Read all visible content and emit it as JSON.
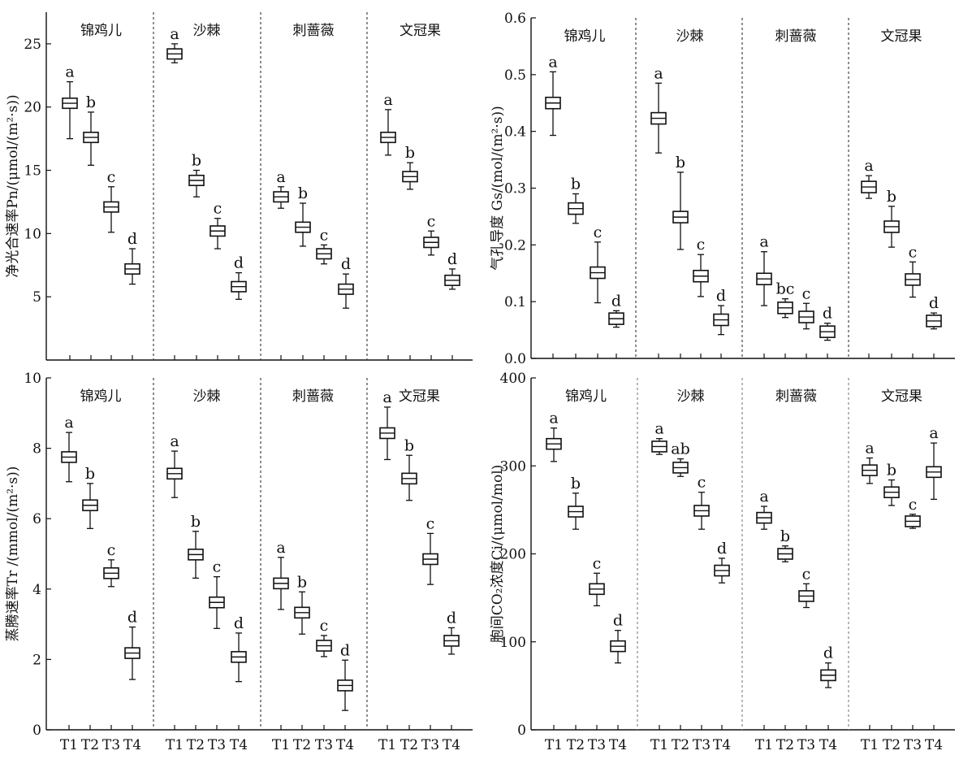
{
  "chart_data": [
    {
      "type": "box",
      "ylabel": "净光合速率Pn/(μmol/(m²·s))",
      "ylim": [
        0,
        27.5
      ],
      "yticks": [
        5,
        10,
        15,
        20,
        25
      ],
      "yticks_text": [
        "5",
        "10",
        "15",
        "20",
        "25"
      ],
      "show_x_tick_labels": false,
      "groups": [
        {
          "name": "锦鸡儿",
          "points": [
            {
              "label": "T1",
              "mean": 20.3,
              "box_low": 19.9,
              "box_high": 20.7,
              "low": 17.5,
              "high": 22.0,
              "sig": "a"
            },
            {
              "label": "T2",
              "mean": 17.6,
              "box_low": 17.2,
              "box_high": 18.0,
              "low": 15.4,
              "high": 19.6,
              "sig": "b"
            },
            {
              "label": "T3",
              "mean": 12.1,
              "box_low": 11.7,
              "box_high": 12.5,
              "low": 10.1,
              "high": 13.7,
              "sig": "c"
            },
            {
              "label": "T4",
              "mean": 7.2,
              "box_low": 6.8,
              "box_high": 7.6,
              "low": 6.0,
              "high": 8.8,
              "sig": "d"
            }
          ]
        },
        {
          "name": "沙棘",
          "points": [
            {
              "label": "T1",
              "mean": 24.2,
              "box_low": 23.8,
              "box_high": 24.6,
              "low": 23.5,
              "high": 25.0,
              "sig": "a"
            },
            {
              "label": "T2",
              "mean": 14.2,
              "box_low": 13.8,
              "box_high": 14.6,
              "low": 12.9,
              "high": 15.0,
              "sig": "b"
            },
            {
              "label": "T3",
              "mean": 10.2,
              "box_low": 9.8,
              "box_high": 10.6,
              "low": 8.8,
              "high": 11.2,
              "sig": "c"
            },
            {
              "label": "T4",
              "mean": 5.8,
              "box_low": 5.4,
              "box_high": 6.2,
              "low": 4.8,
              "high": 6.9,
              "sig": "d"
            }
          ]
        },
        {
          "name": "刺蔷薇",
          "points": [
            {
              "label": "T1",
              "mean": 12.9,
              "box_low": 12.5,
              "box_high": 13.3,
              "low": 12.0,
              "high": 13.7,
              "sig": "a"
            },
            {
              "label": "T2",
              "mean": 10.5,
              "box_low": 10.1,
              "box_high": 10.9,
              "low": 9.0,
              "high": 12.4,
              "sig": "b"
            },
            {
              "label": "T3",
              "mean": 8.4,
              "box_low": 8.0,
              "box_high": 8.8,
              "low": 7.6,
              "high": 9.1,
              "sig": "c"
            },
            {
              "label": "T4",
              "mean": 5.6,
              "box_low": 5.2,
              "box_high": 6.0,
              "low": 4.1,
              "high": 6.8,
              "sig": "d"
            }
          ]
        },
        {
          "name": "文冠果",
          "points": [
            {
              "label": "T1",
              "mean": 17.6,
              "box_low": 17.2,
              "box_high": 18.0,
              "low": 16.2,
              "high": 19.8,
              "sig": "a"
            },
            {
              "label": "T2",
              "mean": 14.5,
              "box_low": 14.1,
              "box_high": 14.9,
              "low": 13.5,
              "high": 15.6,
              "sig": "b"
            },
            {
              "label": "T3",
              "mean": 9.3,
              "box_low": 8.9,
              "box_high": 9.7,
              "low": 8.3,
              "high": 10.2,
              "sig": "c"
            },
            {
              "label": "T4",
              "mean": 6.3,
              "box_low": 5.9,
              "box_high": 6.7,
              "low": 5.6,
              "high": 7.2,
              "sig": "d"
            }
          ]
        }
      ]
    },
    {
      "type": "box",
      "ylabel": "气孔导度 Gs/(mol/(m²·s))",
      "ylim": [
        0,
        0.6
      ],
      "yticks": [
        0,
        0.1,
        0.2,
        0.3,
        0.4,
        0.5,
        0.6
      ],
      "yticks_text": [
        "0.0",
        "0.1",
        "0.2",
        "0.3",
        "0.4",
        "0.5",
        "0.6"
      ],
      "show_x_tick_labels": false,
      "groups": [
        {
          "name": "锦鸡儿",
          "points": [
            {
              "label": "T1",
              "mean": 0.45,
              "box_low": 0.44,
              "box_high": 0.46,
              "low": 0.393,
              "high": 0.505,
              "sig": "a"
            },
            {
              "label": "T2",
              "mean": 0.264,
              "box_low": 0.254,
              "box_high": 0.274,
              "low": 0.238,
              "high": 0.29,
              "sig": "b"
            },
            {
              "label": "T3",
              "mean": 0.151,
              "box_low": 0.141,
              "box_high": 0.161,
              "low": 0.098,
              "high": 0.205,
              "sig": "c"
            },
            {
              "label": "T4",
              "mean": 0.07,
              "box_low": 0.06,
              "box_high": 0.08,
              "low": 0.055,
              "high": 0.084,
              "sig": "d"
            }
          ]
        },
        {
          "name": "沙棘",
          "points": [
            {
              "label": "T1",
              "mean": 0.423,
              "box_low": 0.413,
              "box_high": 0.433,
              "low": 0.362,
              "high": 0.485,
              "sig": "a"
            },
            {
              "label": "T2",
              "mean": 0.249,
              "box_low": 0.239,
              "box_high": 0.259,
              "low": 0.192,
              "high": 0.328,
              "sig": "b"
            },
            {
              "label": "T3",
              "mean": 0.145,
              "box_low": 0.135,
              "box_high": 0.155,
              "low": 0.109,
              "high": 0.183,
              "sig": "c"
            },
            {
              "label": "T4",
              "mean": 0.068,
              "box_low": 0.058,
              "box_high": 0.078,
              "low": 0.042,
              "high": 0.093,
              "sig": "d"
            }
          ]
        },
        {
          "name": "刺蔷薇",
          "points": [
            {
              "label": "T1",
              "mean": 0.14,
              "box_low": 0.13,
              "box_high": 0.15,
              "low": 0.093,
              "high": 0.188,
              "sig": "a"
            },
            {
              "label": "T2",
              "mean": 0.089,
              "box_low": 0.079,
              "box_high": 0.099,
              "low": 0.072,
              "high": 0.105,
              "sig": "bc"
            },
            {
              "label": "T3",
              "mean": 0.073,
              "box_low": 0.063,
              "box_high": 0.083,
              "low": 0.052,
              "high": 0.097,
              "sig": "c"
            },
            {
              "label": "T4",
              "mean": 0.047,
              "box_low": 0.037,
              "box_high": 0.057,
              "low": 0.032,
              "high": 0.062,
              "sig": "d"
            }
          ]
        },
        {
          "name": "文冠果",
          "points": [
            {
              "label": "T1",
              "mean": 0.302,
              "box_low": 0.292,
              "box_high": 0.312,
              "low": 0.282,
              "high": 0.322,
              "sig": "a"
            },
            {
              "label": "T2",
              "mean": 0.232,
              "box_low": 0.222,
              "box_high": 0.242,
              "low": 0.196,
              "high": 0.268,
              "sig": "b"
            },
            {
              "label": "T3",
              "mean": 0.139,
              "box_low": 0.129,
              "box_high": 0.149,
              "low": 0.108,
              "high": 0.17,
              "sig": "c"
            },
            {
              "label": "T4",
              "mean": 0.066,
              "box_low": 0.056,
              "box_high": 0.076,
              "low": 0.052,
              "high": 0.08,
              "sig": "d"
            }
          ]
        }
      ]
    },
    {
      "type": "box",
      "ylabel": "蒸腾速率Tr /(mmol/(m²·s))",
      "ylim": [
        0,
        10
      ],
      "yticks": [
        0,
        2,
        4,
        6,
        8,
        10
      ],
      "yticks_text": [
        "0",
        "2",
        "4",
        "6",
        "8",
        "10"
      ],
      "show_x_tick_labels": true,
      "groups": [
        {
          "name": "锦鸡儿",
          "points": [
            {
              "label": "T1",
              "mean": 7.75,
              "box_low": 7.6,
              "box_high": 7.9,
              "low": 7.05,
              "high": 8.45,
              "sig": "a"
            },
            {
              "label": "T2",
              "mean": 6.38,
              "box_low": 6.23,
              "box_high": 6.53,
              "low": 5.72,
              "high": 7.0,
              "sig": "b"
            },
            {
              "label": "T3",
              "mean": 4.45,
              "box_low": 4.3,
              "box_high": 4.6,
              "low": 4.07,
              "high": 4.83,
              "sig": "c"
            },
            {
              "label": "T4",
              "mean": 2.18,
              "box_low": 2.03,
              "box_high": 2.33,
              "low": 1.43,
              "high": 2.92,
              "sig": "d"
            }
          ]
        },
        {
          "name": "沙棘",
          "points": [
            {
              "label": "T1",
              "mean": 7.28,
              "box_low": 7.13,
              "box_high": 7.43,
              "low": 6.6,
              "high": 7.92,
              "sig": "a"
            },
            {
              "label": "T2",
              "mean": 4.98,
              "box_low": 4.83,
              "box_high": 5.13,
              "low": 4.31,
              "high": 5.64,
              "sig": "b"
            },
            {
              "label": "T3",
              "mean": 3.62,
              "box_low": 3.47,
              "box_high": 3.77,
              "low": 2.88,
              "high": 4.35,
              "sig": "c"
            },
            {
              "label": "T4",
              "mean": 2.07,
              "box_low": 1.92,
              "box_high": 2.22,
              "low": 1.37,
              "high": 2.75,
              "sig": "d"
            }
          ]
        },
        {
          "name": "刺蔷薇",
          "points": [
            {
              "label": "T1",
              "mean": 4.16,
              "box_low": 4.01,
              "box_high": 4.31,
              "low": 3.42,
              "high": 4.9,
              "sig": "a"
            },
            {
              "label": "T2",
              "mean": 3.33,
              "box_low": 3.18,
              "box_high": 3.48,
              "low": 2.72,
              "high": 3.92,
              "sig": "b"
            },
            {
              "label": "T3",
              "mean": 2.39,
              "box_low": 2.24,
              "box_high": 2.54,
              "low": 2.08,
              "high": 2.68,
              "sig": "c"
            },
            {
              "label": "T4",
              "mean": 1.26,
              "box_low": 1.11,
              "box_high": 1.41,
              "low": 0.55,
              "high": 1.98,
              "sig": "d"
            }
          ]
        },
        {
          "name": "文冠果",
          "points": [
            {
              "label": "T1",
              "mean": 8.43,
              "box_low": 8.28,
              "box_high": 8.58,
              "low": 7.68,
              "high": 9.17,
              "sig": "a"
            },
            {
              "label": "T2",
              "mean": 7.14,
              "box_low": 6.99,
              "box_high": 7.29,
              "low": 6.52,
              "high": 7.8,
              "sig": "b"
            },
            {
              "label": "T3",
              "mean": 4.85,
              "box_low": 4.7,
              "box_high": 5.0,
              "low": 4.13,
              "high": 5.58,
              "sig": "c"
            },
            {
              "label": "T4",
              "mean": 2.53,
              "box_low": 2.38,
              "box_high": 2.68,
              "low": 2.15,
              "high": 2.9,
              "sig": "d"
            }
          ]
        }
      ]
    },
    {
      "type": "box",
      "ylabel": "胞间CO₂浓度Ci/(μmol/mol)",
      "ylim": [
        0,
        400
      ],
      "yticks": [
        0,
        100,
        200,
        300,
        400
      ],
      "yticks_text": [
        "0",
        "100",
        "200",
        "300",
        "400"
      ],
      "show_x_tick_labels": true,
      "groups": [
        {
          "name": "锦鸡儿",
          "points": [
            {
              "label": "T1",
              "mean": 325,
              "box_low": 319,
              "box_high": 331,
              "low": 305,
              "high": 343,
              "sig": "a"
            },
            {
              "label": "T2",
              "mean": 248,
              "box_low": 242,
              "box_high": 254,
              "low": 228,
              "high": 269,
              "sig": "b"
            },
            {
              "label": "T3",
              "mean": 160,
              "box_low": 154,
              "box_high": 166,
              "low": 141,
              "high": 178,
              "sig": "c"
            },
            {
              "label": "T4",
              "mean": 95,
              "box_low": 89,
              "box_high": 101,
              "low": 76,
              "high": 113,
              "sig": "d"
            }
          ]
        },
        {
          "name": "沙棘",
          "points": [
            {
              "label": "T1",
              "mean": 322,
              "box_low": 316,
              "box_high": 328,
              "low": 313,
              "high": 331,
              "sig": "a"
            },
            {
              "label": "T2",
              "mean": 298,
              "box_low": 292,
              "box_high": 304,
              "low": 288,
              "high": 308,
              "sig": "ab"
            },
            {
              "label": "T3",
              "mean": 249,
              "box_low": 243,
              "box_high": 255,
              "low": 228,
              "high": 270,
              "sig": "c"
            },
            {
              "label": "T4",
              "mean": 181,
              "box_low": 175,
              "box_high": 187,
              "low": 167,
              "high": 195,
              "sig": "d"
            }
          ]
        },
        {
          "name": "刺蔷薇",
          "points": [
            {
              "label": "T1",
              "mean": 241,
              "box_low": 235,
              "box_high": 247,
              "low": 228,
              "high": 254,
              "sig": "a"
            },
            {
              "label": "T2",
              "mean": 200,
              "box_low": 194,
              "box_high": 206,
              "low": 191,
              "high": 209,
              "sig": "b"
            },
            {
              "label": "T3",
              "mean": 152,
              "box_low": 146,
              "box_high": 158,
              "low": 139,
              "high": 166,
              "sig": "c"
            },
            {
              "label": "T4",
              "mean": 62,
              "box_low": 56,
              "box_high": 68,
              "low": 48,
              "high": 76,
              "sig": "d"
            }
          ]
        },
        {
          "name": "文冠果",
          "points": [
            {
              "label": "T1",
              "mean": 295,
              "box_low": 289,
              "box_high": 301,
              "low": 280,
              "high": 309,
              "sig": "a"
            },
            {
              "label": "T2",
              "mean": 270,
              "box_low": 264,
              "box_high": 276,
              "low": 255,
              "high": 284,
              "sig": "b"
            },
            {
              "label": "T3",
              "mean": 237,
              "box_low": 231,
              "box_high": 243,
              "low": 229,
              "high": 245,
              "sig": "c"
            },
            {
              "label": "T4",
              "mean": 293,
              "box_low": 287,
              "box_high": 299,
              "low": 262,
              "high": 326,
              "sig": "a"
            }
          ]
        }
      ]
    }
  ]
}
